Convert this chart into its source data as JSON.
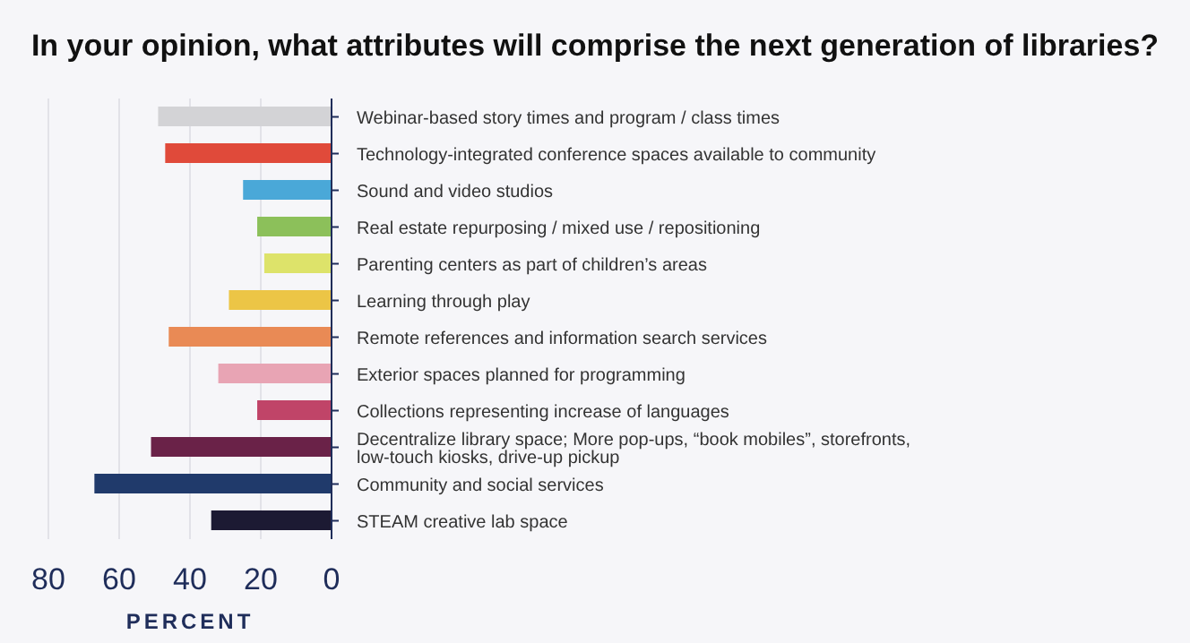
{
  "chart_data": {
    "type": "bar",
    "orientation": "horizontal",
    "title": "In your opinion, what attributes will comprise the next generation of libraries?",
    "xlabel": "PERCENT",
    "categories": [
      "Webinar-based story times and program / class times",
      "Technology-integrated conference spaces available to community",
      "Sound and video studios",
      "Real estate repurposing / mixed use / repositioning",
      "Parenting centers as part of children’s areas",
      "Learning through play",
      "Remote references and information search services",
      "Exterior spaces planned for programming",
      "Collections representing increase of languages",
      "Decentralize library space; More pop-ups, “book mobiles”, storefronts, low-touch kiosks, drive-up pickup",
      "Community and social services",
      "STEAM creative lab space"
    ],
    "values": [
      49,
      47,
      25,
      21,
      19,
      29,
      46,
      32,
      21,
      51,
      67,
      34
    ],
    "colors": [
      "#d3d3d6",
      "#e04a3a",
      "#4aa8d8",
      "#8cc05a",
      "#dde36a",
      "#ecc546",
      "#e98a55",
      "#e8a4b4",
      "#c04468",
      "#6a2248",
      "#203a6b",
      "#1c1a33"
    ],
    "xlim": [
      80,
      0
    ],
    "xticks": [
      80,
      60,
      40,
      20,
      0
    ],
    "grid": "x"
  }
}
